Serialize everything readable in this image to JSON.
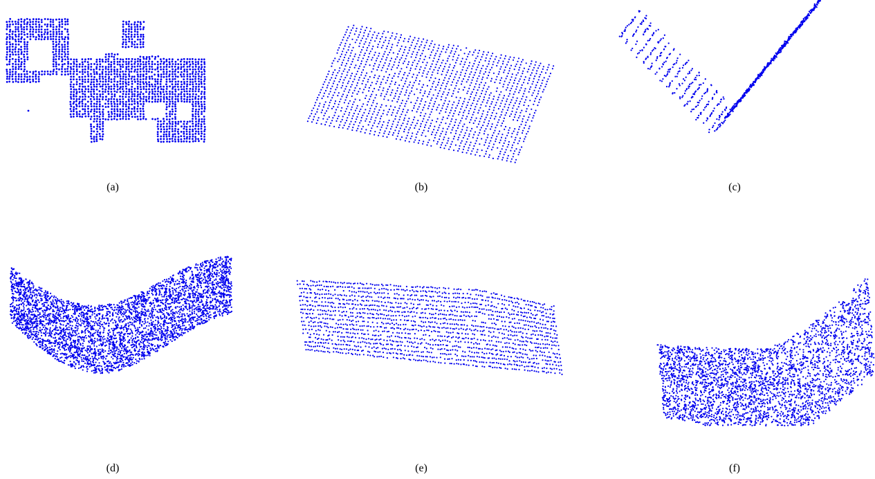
{
  "figure": {
    "point_color": "#0000ee",
    "panels": [
      {
        "id": "a",
        "caption": "(a)",
        "shape": "wall-with-gaps",
        "pattern": "dense-grid"
      },
      {
        "id": "b",
        "caption": "(b)",
        "shape": "tilted-plane",
        "pattern": "sparse-scanlines"
      },
      {
        "id": "c",
        "caption": "(c)",
        "shape": "v-fold",
        "pattern": "diagonal-scanlines"
      },
      {
        "id": "d",
        "caption": "(d)",
        "shape": "wave-ribbon",
        "pattern": "dense"
      },
      {
        "id": "e",
        "caption": "(e)",
        "shape": "curved-slab",
        "pattern": "vertical-strokes"
      },
      {
        "id": "f",
        "caption": "(f)",
        "shape": "saddle-sheet",
        "pattern": "diagonal-strokes"
      }
    ]
  }
}
